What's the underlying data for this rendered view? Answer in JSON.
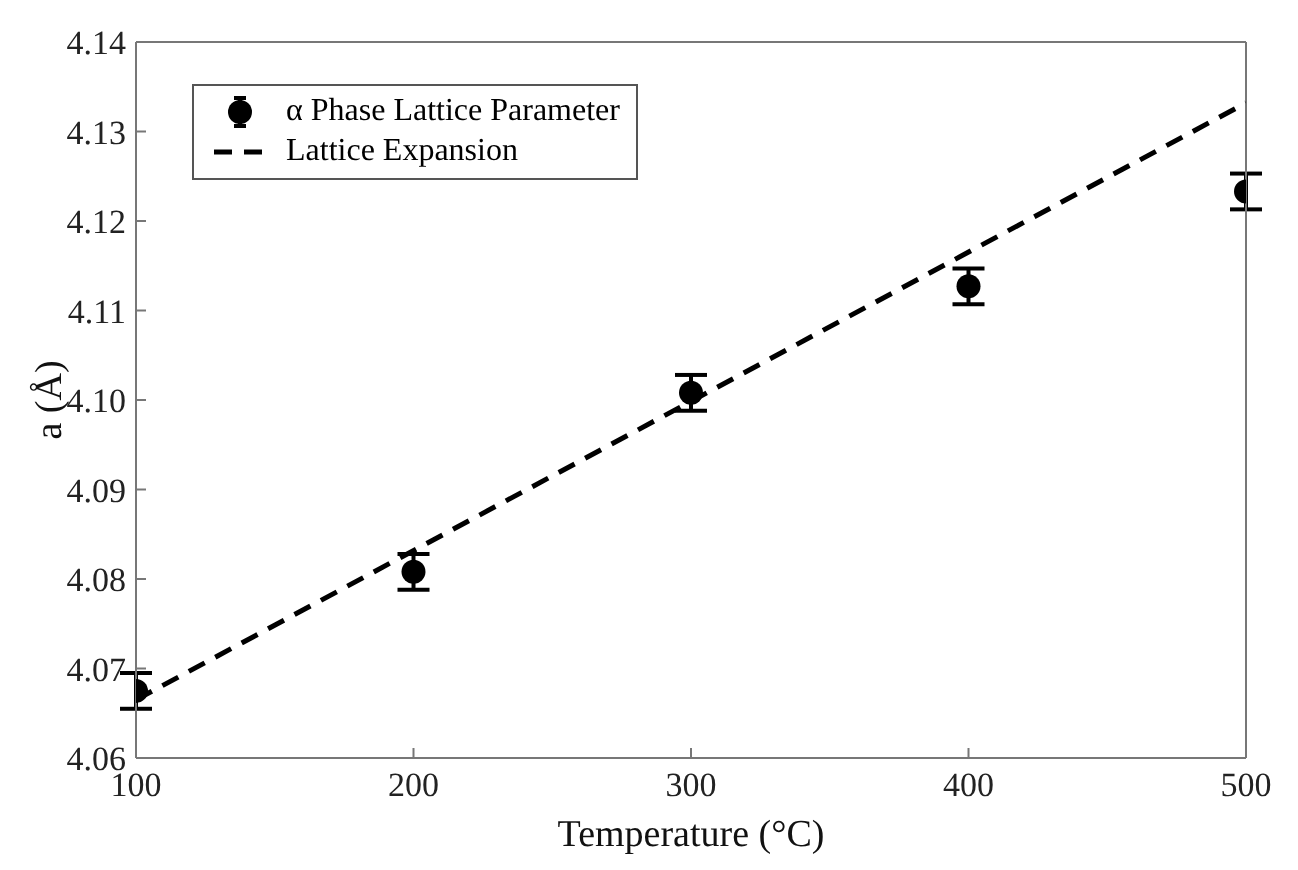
{
  "chart_data": {
    "type": "scatter",
    "xlabel": "Temperature (°C)",
    "ylabel": "a (Å)",
    "xlim": [
      100,
      500
    ],
    "xticks": [
      100,
      200,
      300,
      400,
      500
    ],
    "ylim": [
      4.06,
      4.14
    ],
    "yticks": [
      4.06,
      4.07,
      4.08,
      4.09,
      {
        "value": 4.1,
        "label": "4.10"
      },
      4.11,
      4.12,
      4.13,
      4.14
    ],
    "x": [
      100,
      200,
      300,
      400,
      500
    ],
    "series": [
      {
        "name": "α Phase Lattice Parameter",
        "color": "#000000",
        "values": [
          4.0675,
          4.0808,
          4.1008,
          4.1127,
          4.1233
        ],
        "errors": [
          0.002,
          0.002,
          0.002,
          0.002,
          0.002
        ],
        "marker": "circle"
      },
      {
        "name": "Lattice Expansion",
        "type": "line",
        "color": "#000000",
        "x": [
          100,
          500
        ],
        "values": [
          4.0665,
          4.1332
        ],
        "line_style": "dashed",
        "marker": "none"
      }
    ],
    "grid": false,
    "legend": "top left"
  }
}
